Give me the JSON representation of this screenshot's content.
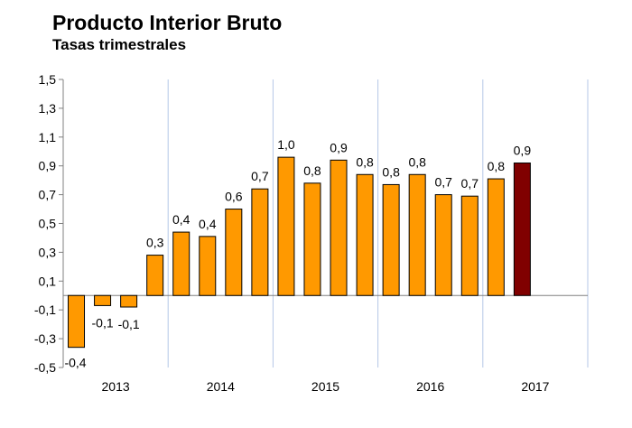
{
  "chart_data": {
    "type": "bar",
    "title": "Producto Interior Bruto",
    "subtitle": "Tasas trimestrales",
    "xlabel": "",
    "ylabel": "",
    "ylim": [
      -0.5,
      1.5
    ],
    "yticks": [
      "-0,5",
      "-0,3",
      "-0,1",
      "0,1",
      "0,3",
      "0,5",
      "0,7",
      "0,9",
      "1,1",
      "1,3",
      "1,5"
    ],
    "ytick_values": [
      -0.5,
      -0.3,
      -0.1,
      0.1,
      0.3,
      0.5,
      0.7,
      0.9,
      1.1,
      1.3,
      1.5
    ],
    "years": [
      "2013",
      "2014",
      "2015",
      "2016",
      "2017"
    ],
    "values": [
      -0.36,
      -0.07,
      -0.08,
      0.28,
      0.44,
      0.41,
      0.6,
      0.74,
      0.96,
      0.78,
      0.94,
      0.84,
      0.77,
      0.84,
      0.7,
      0.69,
      0.81,
      0.92
    ],
    "labels": [
      "-0,4",
      "-0,1",
      "-0,1",
      "0,3",
      "0,4",
      "0,4",
      "0,6",
      "0,7",
      "1,0",
      "0,8",
      "0,9",
      "0,8",
      "0,8",
      "0,8",
      "0,7",
      "0,7",
      "0,8",
      "0,9"
    ],
    "colors": {
      "bar": "#FF9900",
      "highlight": "#800000",
      "grid": "#B4C7E7"
    },
    "highlight_index": 17,
    "grid": false
  }
}
